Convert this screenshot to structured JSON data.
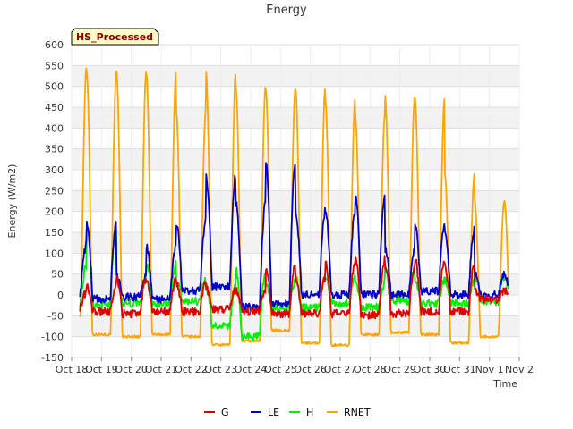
{
  "chart_data": {
    "type": "line",
    "title": "Energy",
    "badge": "HS_Processed",
    "xlabel": "Time",
    "ylabel": "Energy (W/m2)",
    "ylim": [
      -150,
      600
    ],
    "yticks": [
      -150,
      -100,
      -50,
      0,
      50,
      100,
      150,
      200,
      250,
      300,
      350,
      400,
      450,
      500,
      550,
      600
    ],
    "xlim": [
      0,
      15
    ],
    "xticks": [
      {
        "x": 0,
        "label": "Oct 18"
      },
      {
        "x": 1,
        "label": "Oct 19"
      },
      {
        "x": 2,
        "label": "Oct 20"
      },
      {
        "x": 3,
        "label": "Oct 21"
      },
      {
        "x": 4,
        "label": "Oct 22"
      },
      {
        "x": 5,
        "label": "Oct 23"
      },
      {
        "x": 6,
        "label": "Oct 24"
      },
      {
        "x": 7,
        "label": "Oct 25"
      },
      {
        "x": 8,
        "label": "Oct 26"
      },
      {
        "x": 9,
        "label": "Oct 27"
      },
      {
        "x": 10,
        "label": "Oct 28"
      },
      {
        "x": 11,
        "label": "Oct 29"
      },
      {
        "x": 12,
        "label": "Oct 30"
      },
      {
        "x": 13,
        "label": "Oct 31"
      },
      {
        "x": 14,
        "label": "Nov 1"
      },
      {
        "x": 15,
        "label": "Nov 2"
      }
    ],
    "grid": true,
    "legend_position": "bottom",
    "series": [
      {
        "name": "G",
        "color": "#dd0000",
        "days": [
          0.3,
          1,
          2,
          3,
          4,
          5,
          6,
          7,
          8,
          9,
          10,
          11,
          12,
          13,
          14
        ],
        "max": [
          5,
          20,
          40,
          35,
          30,
          15,
          10,
          70,
          40,
          80,
          85,
          65,
          85,
          70,
          10
        ],
        "min": [
          -30,
          -40,
          -45,
          -40,
          -40,
          -35,
          -40,
          -45,
          -45,
          -45,
          -48,
          -45,
          -40,
          -40,
          -10
        ],
        "end": 14.65
      },
      {
        "name": "LE",
        "color": "#0000cc",
        "days": [
          0.3,
          1,
          2,
          3,
          4,
          5,
          6,
          7,
          8,
          9,
          10,
          11,
          12,
          13,
          14
        ],
        "max": [
          120,
          175,
          45,
          115,
          175,
          285,
          220,
          320,
          200,
          200,
          240,
          110,
          170,
          155,
          50
        ],
        "min": [
          5,
          -10,
          -5,
          -10,
          10,
          20,
          -30,
          -20,
          0,
          0,
          0,
          0,
          10,
          0,
          0
        ],
        "end": 14.65
      },
      {
        "name": "H",
        "color": "#00ee00",
        "days": [
          0.3,
          1,
          2,
          3,
          4,
          5,
          6,
          7,
          8,
          9,
          10,
          11,
          12,
          13,
          14
        ],
        "max": [
          70,
          170,
          35,
          75,
          35,
          20,
          60,
          30,
          40,
          40,
          30,
          65,
          35,
          35,
          45
        ],
        "min": [
          -20,
          -25,
          -20,
          -20,
          -15,
          -75,
          -100,
          -30,
          -30,
          -20,
          -30,
          -15,
          -20,
          -20,
          -15
        ],
        "end": 14.65
      },
      {
        "name": "RNET",
        "color": "#ffa500",
        "days": [
          0.3,
          1,
          2,
          3,
          4,
          5,
          6,
          7,
          8,
          9,
          10,
          11,
          12,
          13,
          14
        ],
        "max": [
          548,
          535,
          535,
          533,
          443,
          535,
          500,
          495,
          495,
          468,
          430,
          478,
          475,
          290,
          225
        ],
        "min": [
          -50,
          -95,
          -100,
          -95,
          -100,
          -120,
          -110,
          -85,
          -115,
          -120,
          -95,
          -90,
          -95,
          -115,
          -100
        ],
        "end": 14.65
      }
    ]
  }
}
